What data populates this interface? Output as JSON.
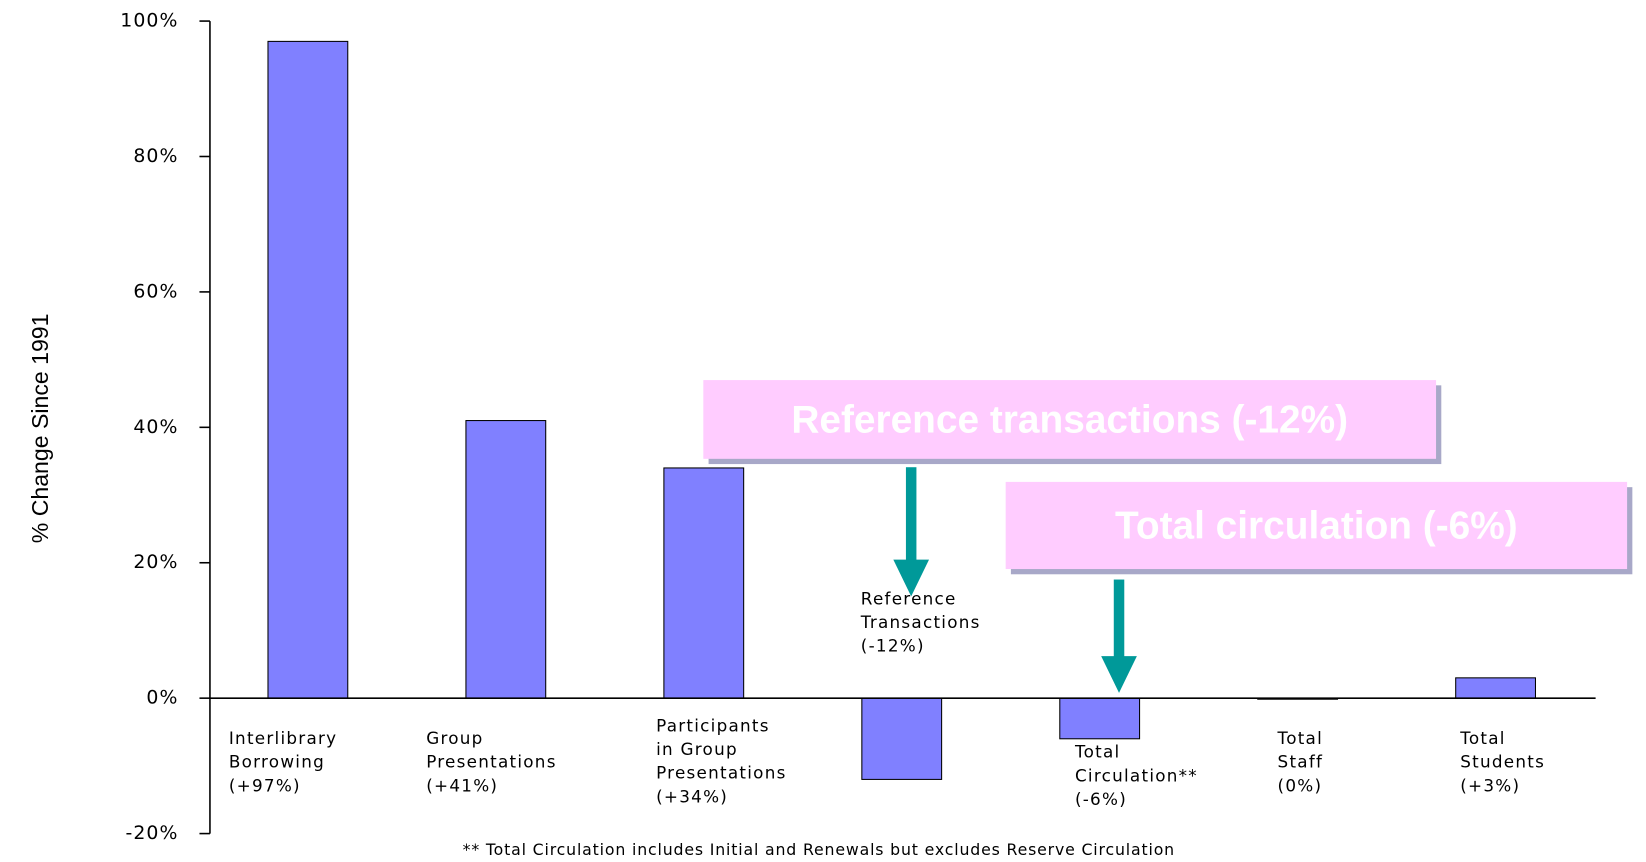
{
  "chart_data": {
    "type": "bar",
    "y_label": "% Change Since 1991",
    "categories": [
      "Interlibrary\nBorrowing\n(+97%)",
      "Group\nPresentations\n(+41%)",
      "Participants\nin Group\nPresentations\n(+34%)",
      "Reference\nTransactions\n(-12%)",
      "Total\nCirculation**\n(-6%)",
      "Total\nStaff\n(0%)",
      "Total\nStudents\n(+3%)"
    ],
    "values": [
      97,
      41,
      34,
      -12,
      -6,
      0,
      3
    ],
    "color": "#8080ff",
    "ylim": [
      -20,
      100
    ],
    "yticks": [
      {
        "value": -20,
        "label": "-20%"
      },
      {
        "value": 0,
        "label": "0%"
      },
      {
        "value": 20,
        "label": "20%"
      },
      {
        "value": 40,
        "label": "40%"
      },
      {
        "value": 60,
        "label": "60%"
      },
      {
        "value": 80,
        "label": "80%"
      },
      {
        "value": 100,
        "label": "100%"
      }
    ],
    "annotations": [
      "Reference transactions (-12%)",
      "Total circulation  (-6%)"
    ],
    "footnote": "** Total Circulation includes Initial and Renewals but excludes Reserve Circulation"
  }
}
